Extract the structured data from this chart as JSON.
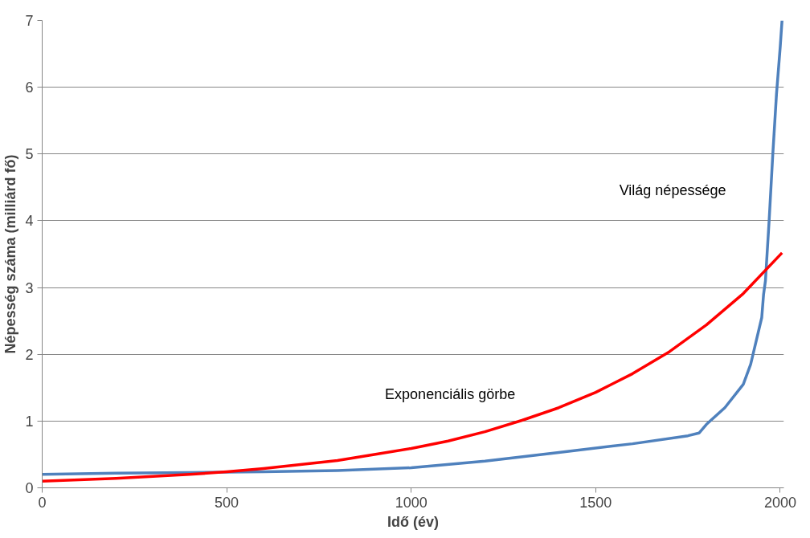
{
  "chart_data": {
    "type": "line",
    "xlabel": "Idő (év)",
    "ylabel": "Népesség száma (milliárd fő)",
    "xlim": [
      0,
      2010
    ],
    "xticks": [
      0,
      500,
      1000,
      1500,
      2000
    ],
    "ylim": [
      0,
      7
    ],
    "yticks": [
      0,
      1,
      2,
      3,
      4,
      5,
      6,
      7
    ],
    "grid": "y",
    "marker": "none",
    "line_style": "solid",
    "series": [
      {
        "color": "#4f81bd",
        "x": [
          0,
          200,
          400,
          600,
          800,
          1000,
          1200,
          1400,
          1600,
          1750,
          1780,
          1800,
          1850,
          1900,
          1920,
          1950,
          1955,
          1960,
          1970,
          1980,
          1990,
          2000,
          2005
        ],
        "values": [
          0.2,
          0.22,
          0.23,
          0.24,
          0.26,
          0.3,
          0.4,
          0.53,
          0.66,
          0.78,
          0.82,
          0.95,
          1.2,
          1.55,
          1.85,
          2.55,
          2.9,
          3.1,
          4.0,
          5.0,
          5.9,
          6.6,
          7.0
        ]
      },
      {
        "color": "#ff0000",
        "x": [
          0,
          100,
          200,
          300,
          400,
          500,
          600,
          700,
          800,
          900,
          1000,
          1100,
          1200,
          1300,
          1400,
          1500,
          1600,
          1700,
          1800,
          1900,
          2005
        ],
        "values": [
          0.1,
          0.12,
          0.14,
          0.17,
          0.2,
          0.24,
          0.29,
          0.35,
          0.41,
          0.5,
          0.59,
          0.7,
          0.84,
          1.01,
          1.2,
          1.43,
          1.71,
          2.04,
          2.44,
          2.91,
          3.52
        ]
      }
    ],
    "annotations": [
      "Világ népessége",
      "Exponenciális görbe"
    ]
  }
}
